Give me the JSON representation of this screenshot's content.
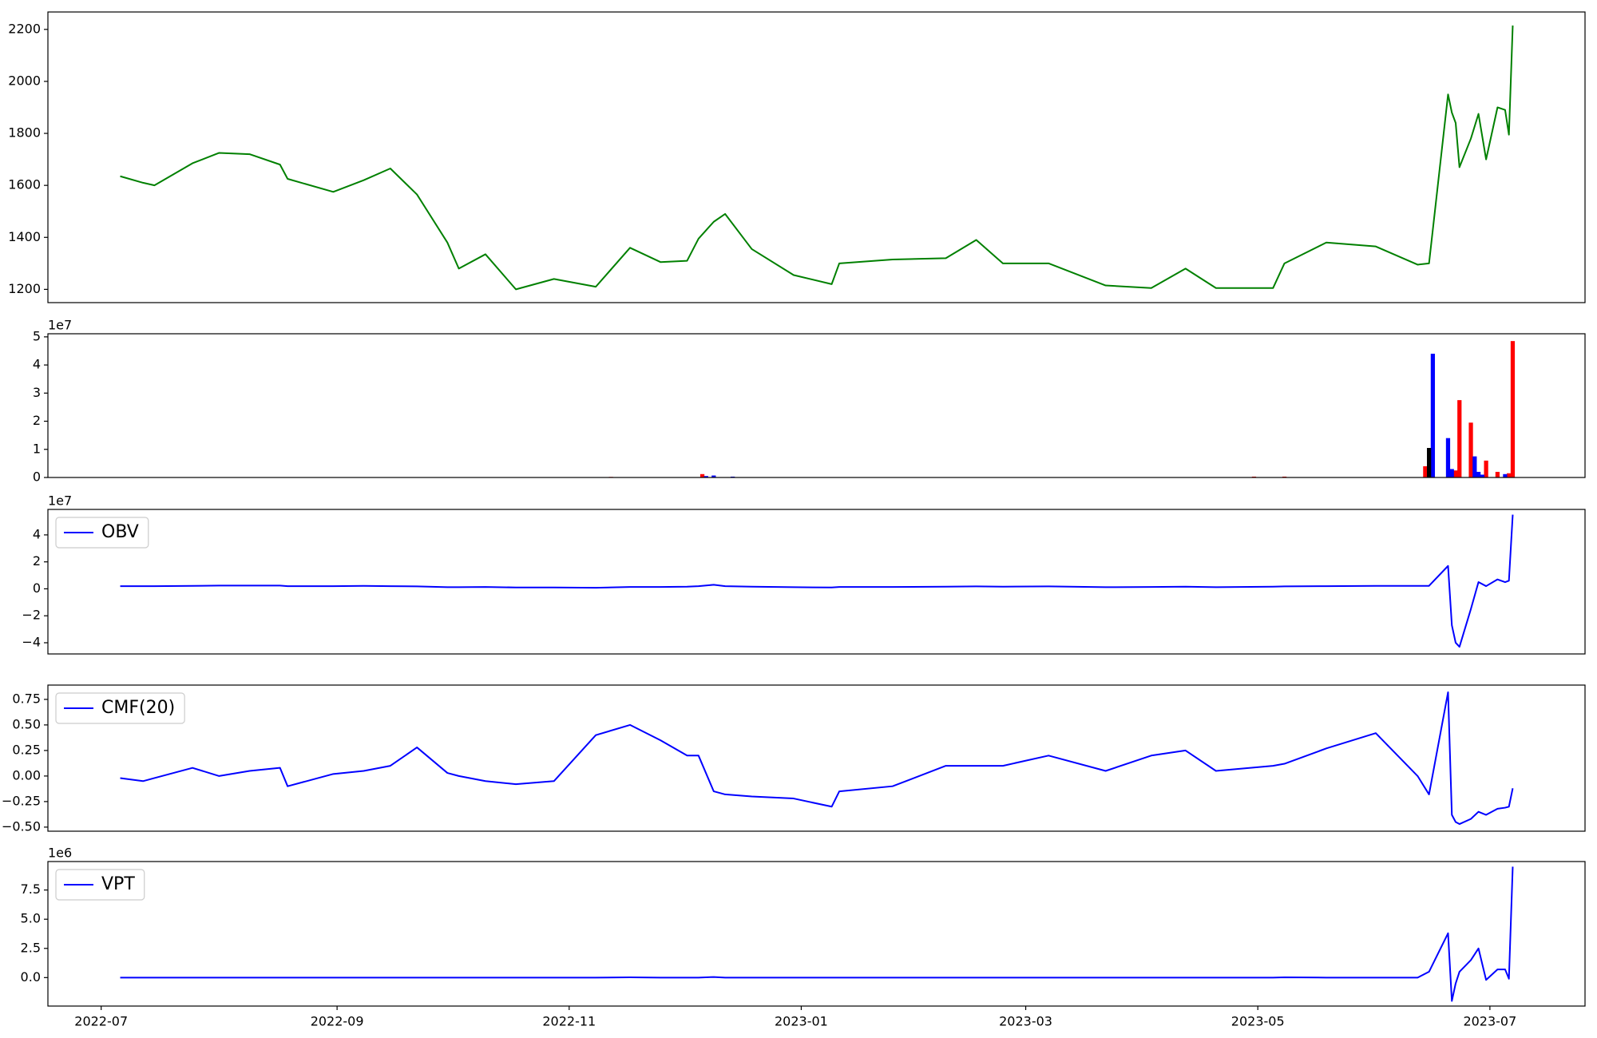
{
  "chart_data": [
    {
      "type": "line",
      "xlim": [
        "2022-06-17",
        "2023-07-26"
      ],
      "ylim": [
        1149,
        2267
      ],
      "yticks": [
        1200,
        1400,
        1600,
        1800,
        2000,
        2200
      ],
      "x": [
        "2022-07-06",
        "2022-07-12",
        "2022-07-15",
        "2022-07-25",
        "2022-08-01",
        "2022-08-09",
        "2022-08-17",
        "2022-08-19",
        "2022-08-31",
        "2022-09-08",
        "2022-09-15",
        "2022-09-22",
        "2022-09-30",
        "2022-10-03",
        "2022-10-10",
        "2022-10-18",
        "2022-10-28",
        "2022-11-08",
        "2022-11-17",
        "2022-11-25",
        "2022-12-02",
        "2022-12-05",
        "2022-12-09",
        "2022-12-12",
        "2022-12-19",
        "2022-12-30",
        "2023-01-09",
        "2023-01-11",
        "2023-01-25",
        "2023-02-08",
        "2023-02-16",
        "2023-02-23",
        "2023-03-07",
        "2023-03-22",
        "2023-04-03",
        "2023-04-12",
        "2023-04-20",
        "2023-05-05",
        "2023-05-08",
        "2023-05-19",
        "2023-06-01",
        "2023-06-12",
        "2023-06-15",
        "2023-06-20",
        "2023-06-21",
        "2023-06-22",
        "2023-06-23",
        "2023-06-26",
        "2023-06-28",
        "2023-06-30",
        "2023-07-03",
        "2023-07-05",
        "2023-07-06",
        "2023-07-07"
      ],
      "series": [
        {
          "color": "#008000",
          "values": [
            1635,
            1610,
            1600,
            1685,
            1725,
            1720,
            1680,
            1625,
            1575,
            1620,
            1665,
            1565,
            1380,
            1280,
            1335,
            1200,
            1240,
            1210,
            1360,
            1305,
            1310,
            1395,
            1460,
            1490,
            1355,
            1255,
            1220,
            1300,
            1315,
            1320,
            1390,
            1300,
            1300,
            1215,
            1205,
            1280,
            1205,
            1205,
            1300,
            1380,
            1365,
            1295,
            1300,
            1950,
            1880,
            1840,
            1670,
            1780,
            1875,
            1700,
            1900,
            1890,
            1795,
            2215
          ]
        }
      ]
    },
    {
      "type": "bar",
      "xlim": [
        "2022-06-17",
        "2023-07-26"
      ],
      "ylim": [
        0,
        5.11
      ],
      "yticks": [
        0,
        1,
        2,
        3,
        4,
        5
      ],
      "offset_text": "1e7",
      "series": [
        {
          "color": "#ff0000",
          "x": [
            "2022-11-12",
            "2022-12-06",
            "2023-04-30",
            "2023-05-08",
            "2023-06-14",
            "2023-06-22",
            "2023-06-23",
            "2023-06-26",
            "2023-06-30",
            "2023-07-03",
            "2023-07-06",
            "2023-07-07"
          ],
          "values": [
            0.02,
            0.12,
            0.03,
            0.03,
            0.4,
            0.25,
            2.75,
            1.95,
            0.6,
            0.2,
            0.15,
            4.85
          ]
        },
        {
          "color": "#0000ff",
          "x": [
            "2022-12-07",
            "2022-12-09",
            "2022-12-14",
            "2023-06-16",
            "2023-06-20",
            "2023-06-21",
            "2023-06-27",
            "2023-06-28",
            "2023-06-29",
            "2023-07-05"
          ],
          "values": [
            0.05,
            0.07,
            0.03,
            4.4,
            1.4,
            0.3,
            0.75,
            0.2,
            0.1,
            0.12
          ]
        },
        {
          "color": "#000000",
          "x": [
            "2023-06-15"
          ],
          "values": [
            1.05
          ]
        }
      ]
    },
    {
      "type": "line",
      "xlim": [
        "2022-06-17",
        "2023-07-26"
      ],
      "ylim": [
        -4.83,
        5.89
      ],
      "offset_text": "1e7",
      "legend": "upper left",
      "yticks": [
        {
          "value": -4,
          "label": "−4"
        },
        {
          "value": -2,
          "label": "−2"
        },
        0,
        2,
        4
      ],
      "x": [
        "2022-07-06",
        "2022-07-12",
        "2022-07-15",
        "2022-07-25",
        "2022-08-01",
        "2022-08-09",
        "2022-08-17",
        "2022-08-19",
        "2022-08-31",
        "2022-09-08",
        "2022-09-15",
        "2022-09-22",
        "2022-09-30",
        "2022-10-03",
        "2022-10-10",
        "2022-10-18",
        "2022-10-28",
        "2022-11-08",
        "2022-11-17",
        "2022-11-25",
        "2022-12-02",
        "2022-12-05",
        "2022-12-09",
        "2022-12-12",
        "2022-12-19",
        "2022-12-30",
        "2023-01-09",
        "2023-01-11",
        "2023-01-25",
        "2023-02-08",
        "2023-02-16",
        "2023-02-23",
        "2023-03-07",
        "2023-03-22",
        "2023-04-03",
        "2023-04-12",
        "2023-04-20",
        "2023-05-05",
        "2023-05-08",
        "2023-05-19",
        "2023-06-01",
        "2023-06-12",
        "2023-06-15",
        "2023-06-20",
        "2023-06-21",
        "2023-06-22",
        "2023-06-23",
        "2023-06-26",
        "2023-06-28",
        "2023-06-30",
        "2023-07-03",
        "2023-07-05",
        "2023-07-06",
        "2023-07-07"
      ],
      "series": [
        {
          "name": "OBV",
          "color": "#0000ff",
          "values": [
            0.2,
            0.2,
            0.2,
            0.22,
            0.24,
            0.24,
            0.24,
            0.2,
            0.2,
            0.22,
            0.2,
            0.18,
            0.12,
            0.12,
            0.14,
            0.1,
            0.1,
            0.08,
            0.14,
            0.14,
            0.16,
            0.2,
            0.3,
            0.2,
            0.16,
            0.12,
            0.1,
            0.14,
            0.14,
            0.16,
            0.18,
            0.16,
            0.18,
            0.12,
            0.14,
            0.16,
            0.12,
            0.16,
            0.18,
            0.2,
            0.22,
            0.22,
            0.22,
            1.7,
            -2.7,
            -4.0,
            -4.3,
            -1.5,
            0.5,
            0.2,
            0.7,
            0.5,
            0.6,
            5.5
          ]
        }
      ]
    },
    {
      "type": "line",
      "xlim": [
        "2022-06-17",
        "2023-07-26"
      ],
      "ylim": [
        -0.54,
        0.89
      ],
      "legend": "upper left",
      "yticks": [
        {
          "value": -0.5,
          "label": "−0.50"
        },
        {
          "value": -0.25,
          "label": "−0.25"
        },
        {
          "value": 0,
          "label": "0.00"
        },
        {
          "value": 0.25,
          "label": "0.25"
        },
        {
          "value": 0.5,
          "label": "0.50"
        },
        {
          "value": 0.75,
          "label": "0.75"
        }
      ],
      "x": [
        "2022-07-06",
        "2022-07-12",
        "2022-07-15",
        "2022-07-25",
        "2022-08-01",
        "2022-08-09",
        "2022-08-17",
        "2022-08-19",
        "2022-08-31",
        "2022-09-08",
        "2022-09-15",
        "2022-09-22",
        "2022-09-30",
        "2022-10-03",
        "2022-10-10",
        "2022-10-18",
        "2022-10-28",
        "2022-11-08",
        "2022-11-17",
        "2022-11-25",
        "2022-12-02",
        "2022-12-05",
        "2022-12-09",
        "2022-12-12",
        "2022-12-19",
        "2022-12-30",
        "2023-01-09",
        "2023-01-11",
        "2023-01-25",
        "2023-02-08",
        "2023-02-16",
        "2023-02-23",
        "2023-03-07",
        "2023-03-22",
        "2023-04-03",
        "2023-04-12",
        "2023-04-20",
        "2023-05-05",
        "2023-05-08",
        "2023-05-19",
        "2023-06-01",
        "2023-06-12",
        "2023-06-15",
        "2023-06-20",
        "2023-06-21",
        "2023-06-22",
        "2023-06-23",
        "2023-06-26",
        "2023-06-28",
        "2023-06-30",
        "2023-07-03",
        "2023-07-05",
        "2023-07-06",
        "2023-07-07"
      ],
      "series": [
        {
          "name": "CMF(20)",
          "color": "#0000ff",
          "values": [
            -0.02,
            -0.05,
            -0.02,
            0.08,
            0.0,
            0.05,
            0.08,
            -0.1,
            0.02,
            0.05,
            0.1,
            0.28,
            0.03,
            0.0,
            -0.05,
            -0.08,
            -0.05,
            0.4,
            0.5,
            0.35,
            0.2,
            0.2,
            -0.15,
            -0.18,
            -0.2,
            -0.22,
            -0.3,
            -0.15,
            -0.1,
            0.1,
            0.1,
            0.1,
            0.2,
            0.05,
            0.2,
            0.25,
            0.05,
            0.1,
            0.12,
            0.27,
            0.42,
            0.0,
            -0.18,
            0.82,
            -0.38,
            -0.45,
            -0.47,
            -0.42,
            -0.35,
            -0.38,
            -0.32,
            -0.31,
            -0.3,
            -0.12
          ]
        }
      ]
    },
    {
      "type": "line",
      "xlim": [
        "2022-06-17",
        "2023-07-26"
      ],
      "ylim": [
        -2.44,
        9.94
      ],
      "offset_text": "1e6",
      "legend": "upper left",
      "yticks": [
        {
          "value": 0,
          "label": "0.0"
        },
        2.5,
        {
          "value": 5,
          "label": "5.0"
        },
        7.5
      ],
      "xticks": [
        {
          "value": "2022-07-01",
          "label": "2022-07"
        },
        {
          "value": "2022-09-01",
          "label": "2022-09"
        },
        {
          "value": "2022-11-01",
          "label": "2022-11"
        },
        {
          "value": "2023-01-01",
          "label": "2023-01"
        },
        {
          "value": "2023-03-01",
          "label": "2023-03"
        },
        {
          "value": "2023-05-01",
          "label": "2023-05"
        },
        {
          "value": "2023-07-01",
          "label": "2023-07"
        }
      ],
      "x": [
        "2022-07-06",
        "2022-07-12",
        "2022-07-15",
        "2022-07-25",
        "2022-08-01",
        "2022-08-09",
        "2022-08-17",
        "2022-08-19",
        "2022-08-31",
        "2022-09-08",
        "2022-09-15",
        "2022-09-22",
        "2022-09-30",
        "2022-10-03",
        "2022-10-10",
        "2022-10-18",
        "2022-10-28",
        "2022-11-08",
        "2022-11-17",
        "2022-11-25",
        "2022-12-02",
        "2022-12-05",
        "2022-12-09",
        "2022-12-12",
        "2022-12-19",
        "2022-12-30",
        "2023-01-09",
        "2023-01-11",
        "2023-01-25",
        "2023-02-08",
        "2023-02-16",
        "2023-02-23",
        "2023-03-07",
        "2023-03-22",
        "2023-04-03",
        "2023-04-12",
        "2023-04-20",
        "2023-05-05",
        "2023-05-08",
        "2023-05-19",
        "2023-06-01",
        "2023-06-12",
        "2023-06-15",
        "2023-06-20",
        "2023-06-21",
        "2023-06-22",
        "2023-06-23",
        "2023-06-26",
        "2023-06-28",
        "2023-06-30",
        "2023-07-03",
        "2023-07-05",
        "2023-07-06",
        "2023-07-07"
      ],
      "series": [
        {
          "name": "VPT",
          "color": "#0000ff",
          "values": [
            0,
            0,
            0,
            0,
            0,
            0,
            0,
            0,
            0,
            0,
            0,
            0,
            0,
            0,
            0,
            0,
            0,
            0,
            0.02,
            0,
            0,
            0,
            0.05,
            0,
            0,
            0,
            0,
            0,
            0,
            0,
            0,
            0,
            0,
            0,
            0,
            0,
            0,
            0,
            0.02,
            0,
            0,
            0,
            0.5,
            3.8,
            -2.0,
            -0.5,
            0.5,
            1.5,
            2.5,
            -0.2,
            0.7,
            0.7,
            -0.1,
            9.5
          ]
        }
      ]
    }
  ]
}
